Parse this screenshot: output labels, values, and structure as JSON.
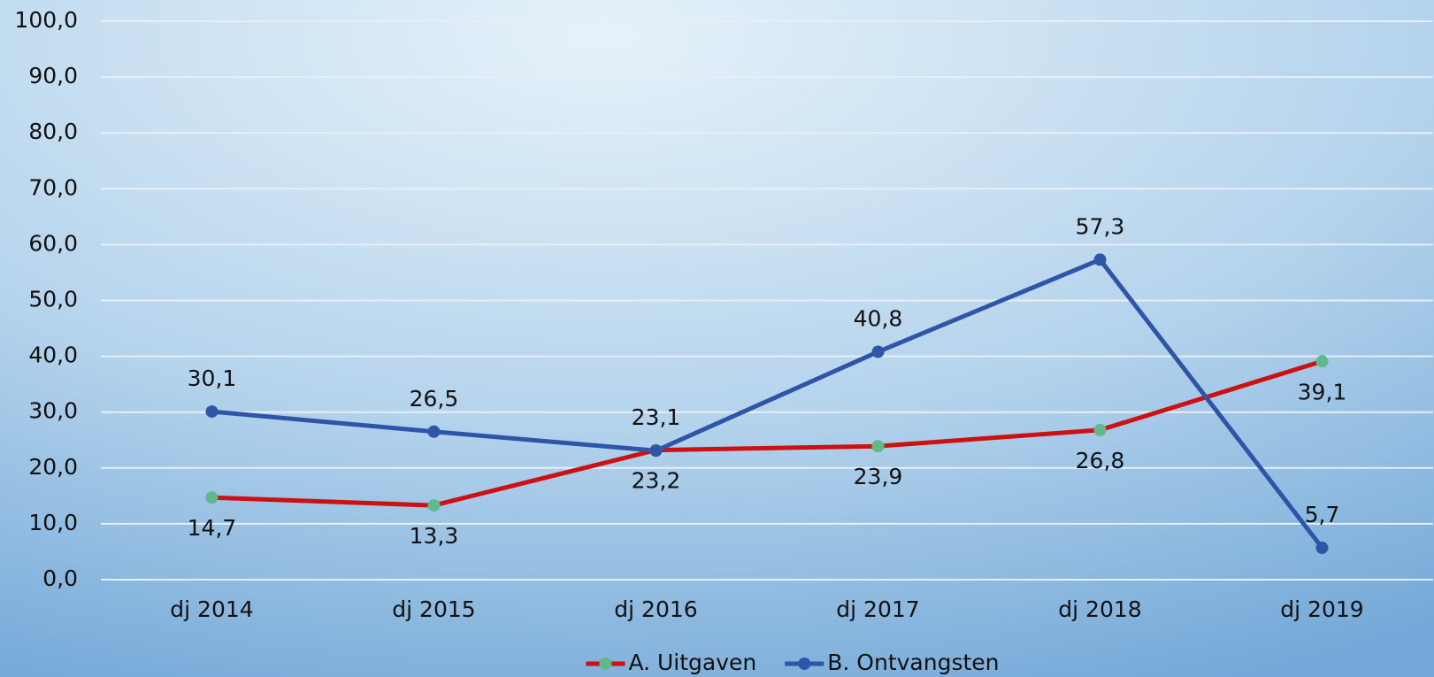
{
  "chart_data": {
    "type": "line",
    "categories": [
      "dj 2014",
      "dj 2015",
      "dj 2016",
      "dj 2017",
      "dj 2018",
      "dj 2019"
    ],
    "series": [
      {
        "name": "A. Uitgaven",
        "color": "#cc1111",
        "marker_color": "#5fb98c",
        "values": [
          14.7,
          13.3,
          23.2,
          23.9,
          26.8,
          39.1
        ],
        "value_labels": [
          "14,7",
          "13,3",
          "23,2",
          "23,9",
          "26,8",
          "39,1"
        ],
        "label_position": "below"
      },
      {
        "name": "B. Ontvangsten",
        "color": "#2f55a8",
        "marker_color": "#2f55a8",
        "values": [
          30.1,
          26.5,
          23.1,
          40.8,
          57.3,
          5.7
        ],
        "value_labels": [
          "30,1",
          "26,5",
          "23,1",
          "40,8",
          "57,3",
          "5,7"
        ],
        "label_position": "above"
      }
    ],
    "ylim": [
      0,
      100
    ],
    "yticks": [
      {
        "value": 0,
        "label": "0,0"
      },
      {
        "value": 10,
        "label": "10,0"
      },
      {
        "value": 20,
        "label": "20,0"
      },
      {
        "value": 30,
        "label": "30,0"
      },
      {
        "value": 40,
        "label": "40,0"
      },
      {
        "value": 50,
        "label": "50,0"
      },
      {
        "value": 60,
        "label": "60,0"
      },
      {
        "value": 70,
        "label": "70,0"
      },
      {
        "value": 80,
        "label": "80,0"
      },
      {
        "value": 90,
        "label": "90,0"
      },
      {
        "value": 100,
        "label": "100,0"
      }
    ],
    "grid": true,
    "legend": "bottom"
  }
}
